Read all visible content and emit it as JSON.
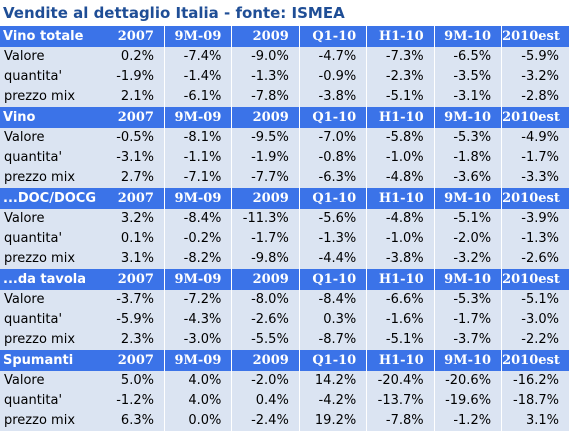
{
  "title": "Vendite al dettaglio Italia - fonte: ISMEA",
  "columns": [
    "2007",
    "9M-09",
    "2009",
    "Q1-10",
    "H1-10",
    "9M-10",
    "2010est"
  ],
  "sections": [
    {
      "name": "Vino totale",
      "rows": [
        {
          "label": "Valore",
          "values": [
            "0.2%",
            "-7.4%",
            "-9.0%",
            "-4.7%",
            "-7.3%",
            "-6.5%",
            "-5.9%"
          ]
        },
        {
          "label": "quantita'",
          "values": [
            "-1.9%",
            "-1.4%",
            "-1.3%",
            "-0.9%",
            "-2.3%",
            "-3.5%",
            "-3.2%"
          ]
        },
        {
          "label": "prezzo mix",
          "values": [
            "2.1%",
            "-6.1%",
            "-7.8%",
            "-3.8%",
            "-5.1%",
            "-3.1%",
            "-2.8%"
          ]
        }
      ]
    },
    {
      "name": "Vino",
      "rows": [
        {
          "label": "Valore",
          "values": [
            "-0.5%",
            "-8.1%",
            "-9.5%",
            "-7.0%",
            "-5.8%",
            "-5.3%",
            "-4.9%"
          ]
        },
        {
          "label": "quantita'",
          "values": [
            "-3.1%",
            "-1.1%",
            "-1.9%",
            "-0.8%",
            "-1.0%",
            "-1.8%",
            "-1.7%"
          ]
        },
        {
          "label": "prezzo mix",
          "values": [
            "2.7%",
            "-7.1%",
            "-7.7%",
            "-6.3%",
            "-4.8%",
            "-3.6%",
            "-3.3%"
          ]
        }
      ]
    },
    {
      "name": "...DOC/DOCG",
      "rows": [
        {
          "label": "Valore",
          "values": [
            "3.2%",
            "-8.4%",
            "-11.3%",
            "-5.6%",
            "-4.8%",
            "-5.1%",
            "-3.9%"
          ]
        },
        {
          "label": "quantita'",
          "values": [
            "0.1%",
            "-0.2%",
            "-1.7%",
            "-1.3%",
            "-1.0%",
            "-2.0%",
            "-1.3%"
          ]
        },
        {
          "label": "prezzo mix",
          "values": [
            "3.1%",
            "-8.2%",
            "-9.8%",
            "-4.4%",
            "-3.8%",
            "-3.2%",
            "-2.6%"
          ]
        }
      ]
    },
    {
      "name": "...da tavola",
      "rows": [
        {
          "label": "Valore",
          "values": [
            "-3.7%",
            "-7.2%",
            "-8.0%",
            "-8.4%",
            "-6.6%",
            "-5.3%",
            "-5.1%"
          ]
        },
        {
          "label": "quantita'",
          "values": [
            "-5.9%",
            "-4.3%",
            "-2.6%",
            "0.3%",
            "-1.6%",
            "-1.7%",
            "-3.0%"
          ]
        },
        {
          "label": "prezzo mix",
          "values": [
            "2.3%",
            "-3.0%",
            "-5.5%",
            "-8.7%",
            "-5.1%",
            "-3.7%",
            "-2.2%"
          ]
        }
      ]
    },
    {
      "name": "Spumanti",
      "rows": [
        {
          "label": "Valore",
          "values": [
            "5.0%",
            "4.0%",
            "-2.0%",
            "14.2%",
            "-20.4%",
            "-20.6%",
            "-16.2%"
          ]
        },
        {
          "label": "quantita'",
          "values": [
            "-1.2%",
            "4.0%",
            "0.4%",
            "-4.2%",
            "-13.7%",
            "-19.6%",
            "-18.7%"
          ]
        },
        {
          "label": "prezzo mix",
          "values": [
            "6.3%",
            "0.0%",
            "-2.4%",
            "19.2%",
            "-7.8%",
            "-1.2%",
            "3.1%"
          ]
        }
      ]
    }
  ]
}
